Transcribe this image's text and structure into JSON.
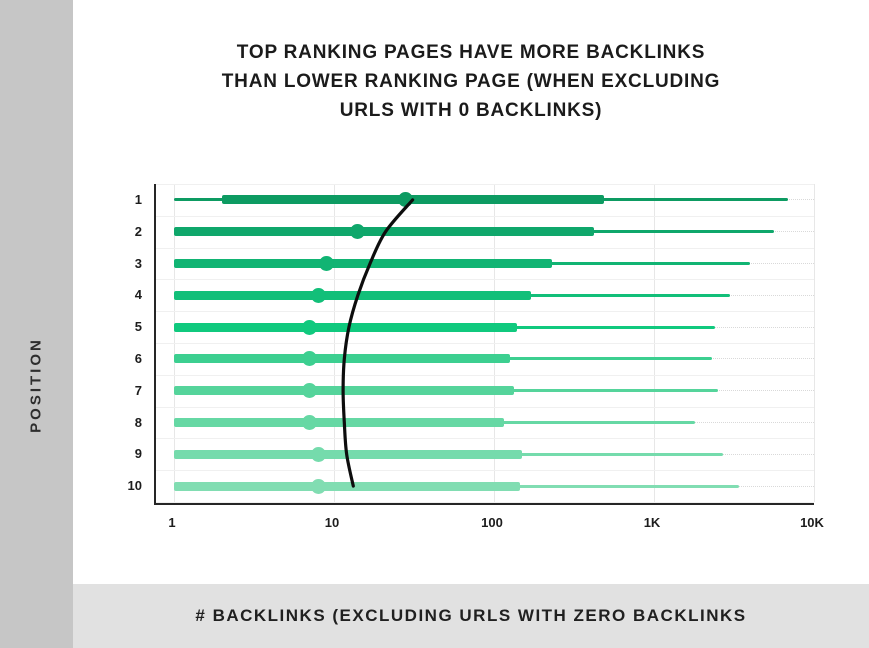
{
  "title": {
    "lines": [
      "TOP RANKING PAGES HAVE MORE BACKLINKS",
      "THAN LOWER RANKING PAGE (WHEN EXCLUDING",
      "URLS WITH 0 BACKLINKS)"
    ]
  },
  "y_axis_label": "POSITION",
  "caption": "# BACKLINKS (EXCLUDING URLS WITH ZERO BACKLINKS",
  "colors": {
    "left_band": "#c6c6c6",
    "bottom_band": "#e1e1e1",
    "axis": "#262626",
    "trend_line": "#0d0d0d"
  },
  "chart_data": {
    "type": "bar",
    "subtype": "horizontal range (box) chart with median dots on log x-axis",
    "title": "Top ranking pages have more backlinks than lower ranking page (when excluding URLs with 0 backlinks)",
    "xlabel": "# Backlinks (excluding URLs with zero backlinks",
    "ylabel": "Position",
    "x_scale": "log",
    "xlim": [
      1,
      10000
    ],
    "grid": true,
    "x_ticks": [
      {
        "value": 1,
        "label": "1"
      },
      {
        "value": 10,
        "label": "10"
      },
      {
        "value": 100,
        "label": "100"
      },
      {
        "value": 1000,
        "label": "1K"
      },
      {
        "value": 10000,
        "label": "10K"
      }
    ],
    "rows": [
      {
        "position": "1",
        "min": 1,
        "q1": 2,
        "median": 28,
        "q3": 490,
        "max": 6900,
        "color": "#0d9b62"
      },
      {
        "position": "2",
        "min": 1,
        "q1": 1,
        "median": 14,
        "q3": 420,
        "max": 5600,
        "color": "#0fa76b"
      },
      {
        "position": "3",
        "min": 1,
        "q1": 1,
        "median": 9,
        "q3": 230,
        "max": 4000,
        "color": "#11b473"
      },
      {
        "position": "4",
        "min": 1,
        "q1": 1,
        "median": 8,
        "q3": 170,
        "max": 3000,
        "color": "#12bf79"
      },
      {
        "position": "5",
        "min": 1,
        "q1": 1,
        "median": 7,
        "q3": 140,
        "max": 2400,
        "color": "#10c97e"
      },
      {
        "position": "6",
        "min": 1,
        "q1": 1,
        "median": 7,
        "q3": 125,
        "max": 2300,
        "color": "#3ccf90"
      },
      {
        "position": "7",
        "min": 1,
        "q1": 1,
        "median": 7,
        "q3": 133,
        "max": 2500,
        "color": "#55d49b"
      },
      {
        "position": "8",
        "min": 1,
        "q1": 1,
        "median": 7,
        "q3": 115,
        "max": 1800,
        "color": "#66d8a4"
      },
      {
        "position": "9",
        "min": 1,
        "q1": 1,
        "median": 8,
        "q3": 150,
        "max": 2700,
        "color": "#75dbac"
      },
      {
        "position": "10",
        "min": 1,
        "q1": 1,
        "median": 8,
        "q3": 145,
        "max": 3400,
        "color": "#81ddb2"
      }
    ],
    "trend_curve_values": [
      31,
      21,
      16.8,
      14.1,
      12.4,
      11.6,
      11.4,
      11.6,
      12,
      13.2
    ],
    "legend": "none"
  }
}
